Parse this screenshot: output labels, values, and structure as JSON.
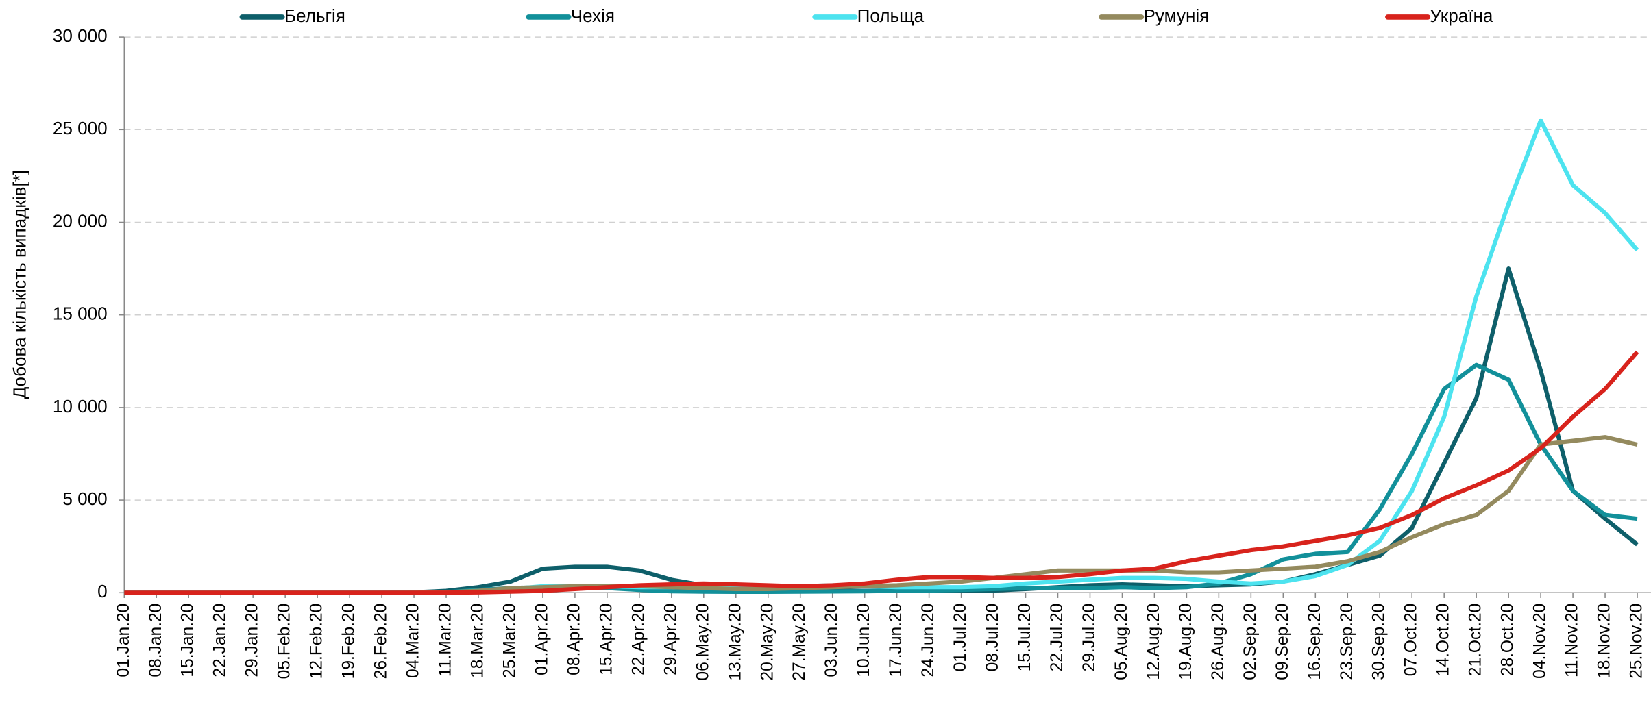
{
  "chart_data": {
    "type": "line",
    "y_label": "Добова кількість випадків[*]",
    "categories": [
      "01.Jan.20",
      "08.Jan.20",
      "15.Jan.20",
      "22.Jan.20",
      "29.Jan.20",
      "05.Feb.20",
      "12.Feb.20",
      "19.Feb.20",
      "26.Feb.20",
      "04.Mar.20",
      "11.Mar.20",
      "18.Mar.20",
      "25.Mar.20",
      "01.Apr.20",
      "08.Apr.20",
      "15.Apr.20",
      "22.Apr.20",
      "29.Apr.20",
      "06.May.20",
      "13.May.20",
      "20.May.20",
      "27.May.20",
      "03.Jun.20",
      "10.Jun.20",
      "17.Jun.20",
      "24.Jun.20",
      "01.Jul.20",
      "08.Jul.20",
      "15.Jul.20",
      "22.Jul.20",
      "29.Jul.20",
      "05.Aug.20",
      "12.Aug.20",
      "19.Aug.20",
      "26.Aug.20",
      "02.Sep.20",
      "09.Sep.20",
      "16.Sep.20",
      "23.Sep.20",
      "30.Sep.20",
      "07.Oct.20",
      "14.Oct.20",
      "21.Oct.20",
      "28.Oct.20",
      "04.Nov.20",
      "11.Nov.20",
      "18.Nov.20",
      "25.Nov.20"
    ],
    "series": [
      {
        "name": "Бельгія",
        "color": "#0e5f6a",
        "values": [
          0,
          0,
          0,
          0,
          0,
          0,
          0,
          0,
          0,
          20,
          100,
          300,
          600,
          1300,
          1400,
          1400,
          1200,
          700,
          400,
          250,
          200,
          150,
          100,
          100,
          100,
          100,
          100,
          120,
          200,
          300,
          400,
          450,
          400,
          350,
          400,
          450,
          600,
          1000,
          1500,
          2000,
          3500,
          7000,
          10500,
          17500,
          12000,
          5500,
          4000,
          2600
        ]
      },
      {
        "name": "Чехія",
        "color": "#12909a",
        "values": [
          0,
          0,
          0,
          0,
          0,
          0,
          0,
          0,
          0,
          5,
          20,
          150,
          250,
          300,
          300,
          250,
          150,
          80,
          60,
          50,
          50,
          60,
          70,
          80,
          100,
          120,
          150,
          200,
          250,
          250,
          250,
          300,
          250,
          300,
          500,
          1000,
          1800,
          2100,
          2200,
          4500,
          7500,
          11000,
          12300,
          11500,
          8000,
          5500,
          4200,
          4000
        ]
      },
      {
        "name": "Польща",
        "color": "#4de3ef",
        "values": [
          0,
          0,
          0,
          0,
          0,
          0,
          0,
          0,
          0,
          0,
          20,
          50,
          200,
          350,
          350,
          350,
          300,
          300,
          300,
          300,
          300,
          350,
          400,
          350,
          300,
          300,
          300,
          350,
          500,
          600,
          700,
          800,
          800,
          750,
          600,
          500,
          600,
          900,
          1500,
          2800,
          5500,
          9500,
          16000,
          21000,
          25500,
          22000,
          20500,
          18500
        ]
      },
      {
        "name": "Румунія",
        "color": "#948a5e",
        "values": [
          0,
          0,
          0,
          0,
          0,
          0,
          0,
          0,
          0,
          5,
          20,
          100,
          250,
          300,
          350,
          350,
          350,
          300,
          250,
          200,
          200,
          250,
          300,
          350,
          400,
          500,
          600,
          800,
          1000,
          1200,
          1200,
          1200,
          1200,
          1100,
          1100,
          1200,
          1300,
          1400,
          1700,
          2200,
          3000,
          3700,
          4200,
          5500,
          8000,
          8200,
          8400,
          8000
        ]
      },
      {
        "name": "Україна",
        "color": "#d8231c",
        "values": [
          0,
          0,
          0,
          0,
          0,
          0,
          0,
          0,
          0,
          0,
          5,
          20,
          60,
          100,
          200,
          300,
          400,
          450,
          500,
          450,
          400,
          350,
          400,
          500,
          700,
          850,
          850,
          800,
          800,
          850,
          1000,
          1200,
          1300,
          1700,
          2000,
          2300,
          2500,
          2800,
          3100,
          3500,
          4200,
          5100,
          5800,
          6600,
          7800,
          9500,
          11000,
          13000
        ]
      }
    ],
    "ylim": [
      0,
      30000
    ],
    "yticks": [
      {
        "value": 0,
        "label": "0"
      },
      {
        "value": 5000,
        "label": "5 000"
      },
      {
        "value": 10000,
        "label": "10 000"
      },
      {
        "value": 15000,
        "label": "15 000"
      },
      {
        "value": 20000,
        "label": "20 000"
      },
      {
        "value": 25000,
        "label": "25 000"
      },
      {
        "value": 30000,
        "label": "30 000"
      }
    ],
    "grid": true
  }
}
